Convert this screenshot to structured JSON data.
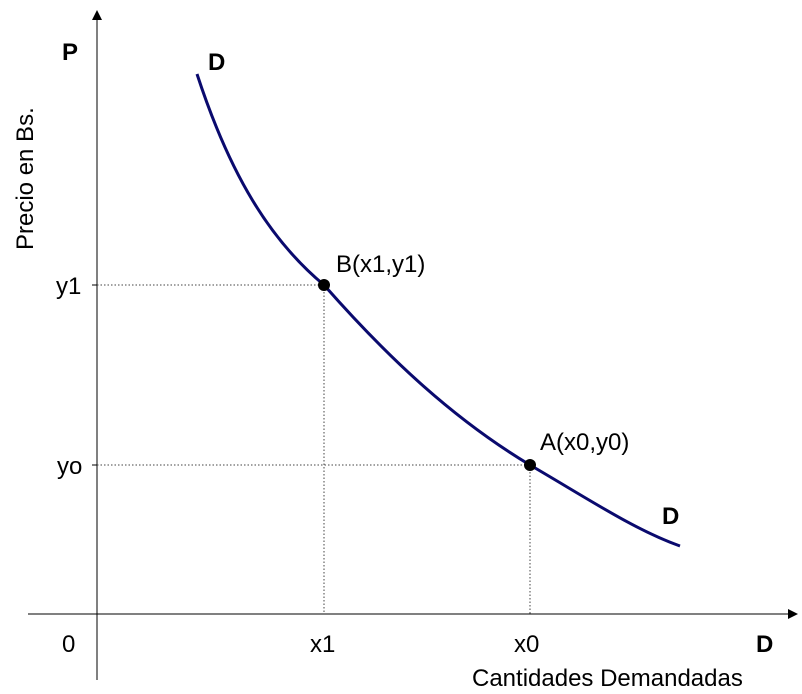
{
  "diagram": {
    "axis_y_letter": "P",
    "y_axis_title": "Precio en Bs.",
    "x_axis_letter": "D",
    "x_axis_title": "Cantidades Demandadas",
    "origin_label": "0",
    "curve": {
      "start_label": "D",
      "end_label": "D",
      "color": "#0a0a6e"
    },
    "points": {
      "a": {
        "label": "A(x0,y0)",
        "x_tick": "x0",
        "y_tick": "yo"
      },
      "b": {
        "label": "B(x1,y1)",
        "x_tick": "x1",
        "y_tick": "y1"
      }
    }
  }
}
